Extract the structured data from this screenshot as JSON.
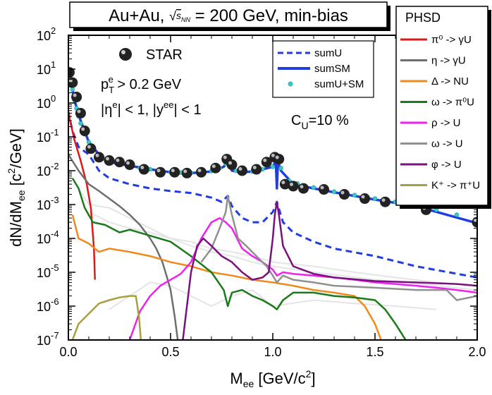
{
  "chart_data": {
    "type": "line",
    "title": "Au+Au, ",
    "title_sqrt": "s",
    "title_sub": "NN",
    "title_rest": " = 200 GeV, min-bias",
    "xlabel": "M",
    "xlabel_sub": "ee",
    "xlabel_rest": " [GeV/c",
    "xlabel_sup": "2",
    "xlabel_end": "]",
    "ylabel": "dN/dM",
    "ylabel_sub": "ee",
    "ylabel_rest": " [c",
    "ylabel_sup": "2",
    "ylabel_end": "/GeV]",
    "xlim": [
      0.0,
      2.0
    ],
    "ylim": [
      1e-07,
      100
    ],
    "yscale": "log",
    "x_ticks": [
      "0.0",
      "0.5",
      "1.0",
      "1.5",
      "2.0"
    ],
    "x_tick_values": [
      0.0,
      0.5,
      1.0,
      1.5,
      2.0
    ],
    "y_tick_exponents": [
      -7,
      -6,
      -5,
      -4,
      -3,
      -2,
      -1,
      0,
      1,
      2
    ],
    "y_tick_base": "10",
    "annotations": {
      "star_label": "STAR",
      "pt_cut_a": "p",
      "pt_cut_sub": "T",
      "pt_cut_sup": "e",
      "pt_cut_b": " > 0.2 GeV",
      "eta_cut": "|η",
      "eta_sup": "e",
      "eta_mid": "| < 1, |y",
      "y_sup": "ee",
      "eta_end": "| < 1",
      "cu_a": "C",
      "cu_sub": "U",
      "cu_b": "=10 %"
    },
    "legend_sum": [
      {
        "label": "sumU",
        "color": "#1f3de0",
        "style": "dashed"
      },
      {
        "label": "sumSM",
        "color": "#1f3de0",
        "style": "solid"
      },
      {
        "label": "sumU+SM",
        "color": "#37c8c8",
        "style": "marker"
      }
    ],
    "legend_phsd_title": "PHSD",
    "legend_phsd": [
      {
        "label": "π⁰ -> γU",
        "color": "#e01818"
      },
      {
        "label": "η -> γU",
        "color": "#6e6e6e"
      },
      {
        "label": "Δ -> NU",
        "color": "#f08a1e"
      },
      {
        "label": "ω -> π⁰U",
        "color": "#1a7a1a"
      },
      {
        "label": "ρ -> U",
        "color": "#f020f0"
      },
      {
        "label": "ω -> U",
        "color": "#909090"
      },
      {
        "label": "φ -> U",
        "color": "#7a1080"
      },
      {
        "label": "K⁺ -> π⁺U",
        "color": "#a8a040"
      }
    ],
    "series": [
      {
        "name": "STAR",
        "kind": "points",
        "color": "#222222",
        "x": [
          0.005,
          0.02,
          0.04,
          0.06,
          0.08,
          0.11,
          0.15,
          0.2,
          0.25,
          0.3,
          0.37,
          0.45,
          0.52,
          0.58,
          0.65,
          0.72,
          0.775,
          0.8,
          0.85,
          0.92,
          0.97,
          1.01,
          1.03,
          1.06,
          1.1,
          1.15,
          1.25,
          1.35,
          1.45,
          1.55,
          1.75,
          2.0
        ],
        "y": [
          8,
          4,
          1.5,
          0.5,
          0.15,
          0.045,
          0.025,
          0.02,
          0.018,
          0.015,
          0.011,
          0.009,
          0.009,
          0.0085,
          0.009,
          0.012,
          0.022,
          0.015,
          0.01,
          0.011,
          0.018,
          0.025,
          0.022,
          0.004,
          0.0035,
          0.003,
          0.0028,
          0.002,
          0.0015,
          0.0012,
          0.0007,
          0.0003
        ]
      },
      {
        "name": "sumU",
        "kind": "line",
        "color": "#1f3de0",
        "style": "dashed",
        "x": [
          0.0,
          0.02,
          0.05,
          0.1,
          0.15,
          0.2,
          0.3,
          0.4,
          0.5,
          0.6,
          0.7,
          0.75,
          0.78,
          0.8,
          0.85,
          0.9,
          0.95,
          1.0,
          1.02,
          1.05,
          1.1,
          1.2,
          1.3,
          1.5,
          1.7,
          2.0
        ],
        "y": [
          0.55,
          0.15,
          0.05,
          0.03,
          0.01,
          0.006,
          0.004,
          0.003,
          0.0025,
          0.0022,
          0.0016,
          0.0012,
          0.0018,
          0.0009,
          0.0004,
          0.0003,
          0.0003,
          0.0006,
          0.0012,
          0.0003,
          0.00015,
          8e-05,
          5e-05,
          3e-05,
          1.5e-05,
          7e-06
        ]
      },
      {
        "name": "sumSM",
        "kind": "line",
        "color": "#1f3de0",
        "style": "solid",
        "x": [
          0.0,
          0.01,
          0.03,
          0.06,
          0.1,
          0.15,
          0.2,
          0.3,
          0.4,
          0.5,
          0.6,
          0.7,
          0.76,
          0.78,
          0.8,
          0.85,
          0.9,
          0.95,
          1.0,
          1.015,
          1.02,
          1.025,
          1.04,
          1.1,
          1.2,
          1.3,
          1.5,
          1.7,
          2.0
        ],
        "y": [
          9,
          5,
          1.2,
          0.3,
          0.07,
          0.03,
          0.018,
          0.014,
          0.011,
          0.009,
          0.0085,
          0.0095,
          0.013,
          0.02,
          0.01,
          0.009,
          0.0095,
          0.011,
          0.013,
          0.02,
          0.003,
          0.019,
          0.01,
          0.004,
          0.003,
          0.0023,
          0.0014,
          0.0009,
          0.00028
        ]
      },
      {
        "name": "sumU+SM",
        "kind": "markers",
        "color": "#37c8c8",
        "x": [
          0.0,
          0.01,
          0.02,
          0.03,
          0.04,
          0.05,
          0.06,
          0.08,
          0.1,
          0.12,
          0.15,
          0.18,
          0.21,
          0.25,
          0.3,
          0.35,
          0.4,
          0.45,
          0.5,
          0.55,
          0.6,
          0.65,
          0.7,
          0.74,
          0.77,
          0.79,
          0.82,
          0.86,
          0.9,
          0.95,
          1.0,
          1.02,
          1.04,
          1.08,
          1.12,
          1.2,
          1.3,
          1.4,
          1.5,
          1.6,
          1.7,
          1.8,
          1.9,
          2.0
        ],
        "y": [
          9,
          5,
          2.5,
          1.2,
          0.7,
          0.4,
          0.25,
          0.12,
          0.07,
          0.045,
          0.03,
          0.022,
          0.018,
          0.015,
          0.014,
          0.012,
          0.011,
          0.01,
          0.009,
          0.0088,
          0.0086,
          0.009,
          0.0098,
          0.012,
          0.016,
          0.014,
          0.01,
          0.0093,
          0.0095,
          0.011,
          0.013,
          0.02,
          0.012,
          0.005,
          0.0042,
          0.0032,
          0.0024,
          0.0019,
          0.0015,
          0.0012,
          0.0009,
          0.0007,
          0.0005,
          0.0003
        ]
      },
      {
        "name": "π⁰ -> γU",
        "kind": "line",
        "color": "#e01818",
        "x": [
          0.0,
          0.03,
          0.06,
          0.09,
          0.11,
          0.125,
          0.13
        ],
        "y": [
          0.5,
          0.08,
          0.02,
          0.004,
          0.0008,
          5e-05,
          6e-06
        ]
      },
      {
        "name": "η -> γU",
        "kind": "line",
        "color": "#6e6e6e",
        "x": [
          0.0,
          0.05,
          0.1,
          0.15,
          0.2,
          0.25,
          0.3,
          0.35,
          0.4,
          0.43,
          0.46,
          0.48,
          0.5,
          0.52,
          0.535
        ],
        "y": [
          0.03,
          0.01,
          0.004,
          0.0025,
          0.0015,
          0.0009,
          0.0005,
          0.00025,
          0.0001,
          5e-05,
          2e-05,
          8e-06,
          3e-06,
          5e-07,
          1e-07
        ]
      },
      {
        "name": "Δ -> NU",
        "kind": "line",
        "color": "#f08a1e",
        "x": [
          0.02,
          0.05,
          0.1,
          0.15,
          0.2,
          0.3,
          0.4,
          0.5,
          0.6,
          0.7,
          0.8,
          0.9,
          1.0,
          1.1,
          1.2,
          1.3,
          1.4,
          1.45,
          1.5,
          1.53
        ],
        "y": [
          0.0005,
          0.0001,
          7e-05,
          4e-05,
          5e-05,
          4e-05,
          3e-05,
          2e-05,
          1.5e-05,
          1e-05,
          8e-06,
          6e-06,
          5e-06,
          4e-06,
          3e-06,
          2.5e-06,
          2e-06,
          1e-06,
          3e-07,
          1e-07
        ]
      },
      {
        "name": "ω -> π⁰U",
        "kind": "line",
        "color": "#1a7a1a",
        "x": [
          0.02,
          0.05,
          0.08,
          0.12,
          0.18,
          0.25,
          0.3,
          0.4,
          0.5,
          0.6,
          0.7,
          0.76,
          0.78,
          0.8,
          0.85,
          0.9,
          0.95,
          1.0,
          1.02,
          1.05,
          1.1,
          1.2,
          1.3,
          1.4,
          1.5,
          1.55,
          1.6,
          1.65
        ],
        "y": [
          0.006,
          0.003,
          0.0008,
          0.0003,
          0.00025,
          0.00015,
          0.00018,
          0.00012,
          8e-05,
          3e-05,
          1e-05,
          3e-06,
          1e-06,
          2.5e-06,
          3e-06,
          2e-06,
          1.5e-06,
          1e-06,
          8e-07,
          1.5e-06,
          2.5e-06,
          2.5e-06,
          2e-06,
          1.8e-06,
          1.5e-06,
          8e-07,
          3e-07,
          1e-07
        ]
      },
      {
        "name": "ρ -> U",
        "kind": "line",
        "color": "#f020f0",
        "x": [
          0.3,
          0.35,
          0.4,
          0.45,
          0.5,
          0.55,
          0.6,
          0.65,
          0.7,
          0.74,
          0.77,
          0.8,
          0.85,
          0.9,
          0.95,
          1.0,
          1.02,
          1.05,
          1.1,
          1.2,
          1.3,
          1.4,
          1.5,
          1.6,
          1.7,
          1.8,
          1.9,
          2.0
        ],
        "y": [
          1e-07,
          7e-07,
          2e-06,
          4e-06,
          6e-06,
          9e-06,
          2e-05,
          0.0001,
          0.0003,
          0.0004,
          0.0003,
          0.0002,
          5e-05,
          3e-05,
          2e-05,
          1.2e-05,
          8e-06,
          1e-05,
          9e-06,
          8e-06,
          7e-06,
          6e-06,
          5e-06,
          4.5e-06,
          4e-06,
          3.5e-06,
          3e-06,
          2.5e-06
        ]
      },
      {
        "name": "ω -> U",
        "kind": "line",
        "color": "#909090",
        "x": [
          0.65,
          0.7,
          0.74,
          0.77,
          0.78,
          0.8,
          0.83,
          0.87,
          0.92,
          0.97,
          1.0,
          1.02,
          1.05,
          1.1,
          1.2,
          1.3,
          1.5,
          1.7,
          1.85,
          1.9,
          2.0
        ],
        "y": [
          2e-05,
          5e-05,
          0.0002,
          0.0006,
          0.0018,
          0.0005,
          0.0001,
          6e-05,
          3e-05,
          1.5e-05,
          8e-06,
          5e-06,
          8e-06,
          6e-06,
          5e-06,
          4e-06,
          3.5e-06,
          3e-06,
          3e-06,
          1.5e-06,
          2e-06
        ]
      },
      {
        "name": "φ -> U",
        "kind": "line",
        "color": "#7a1080",
        "x": [
          0.56,
          0.58,
          0.6,
          0.63,
          0.66,
          0.7,
          0.75,
          0.8,
          0.85,
          0.9,
          0.95,
          0.98,
          1.0,
          1.01,
          1.02,
          1.03,
          1.05,
          1.1,
          1.2,
          1.3,
          1.5,
          1.7,
          1.9,
          2.0
        ],
        "y": [
          1e-07,
          1e-06,
          1e-05,
          6e-05,
          0.0001,
          6e-05,
          3e-05,
          2e-05,
          1e-05,
          6e-06,
          7e-06,
          1e-05,
          0.0001,
          0.0005,
          0.0012,
          0.0005,
          6e-05,
          1.5e-05,
          9e-06,
          7e-06,
          5.5e-06,
          5e-06,
          4.5e-06,
          4e-06
        ]
      },
      {
        "name": "K⁺ -> π⁺U",
        "kind": "line",
        "color": "#a8a040",
        "x": [
          0.02,
          0.05,
          0.1,
          0.15,
          0.2,
          0.25,
          0.3,
          0.33,
          0.345,
          0.355
        ],
        "y": [
          1e-07,
          3e-07,
          6e-07,
          1.2e-06,
          1.5e-06,
          1.8e-06,
          2e-06,
          2e-06,
          5e-07,
          1e-07
        ]
      }
    ]
  }
}
